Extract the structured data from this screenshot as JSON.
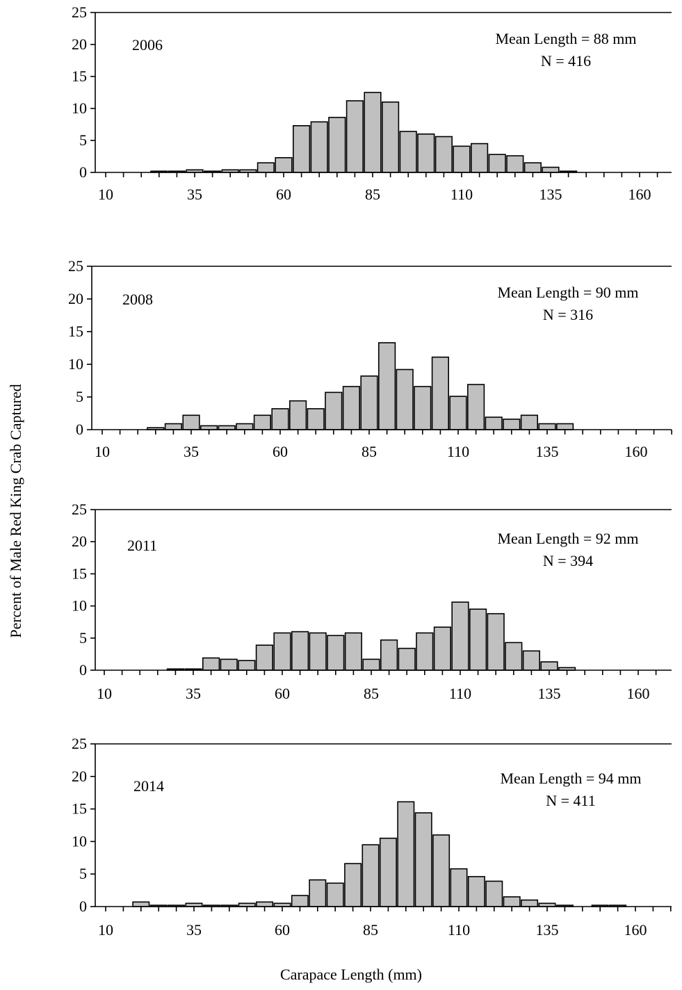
{
  "figure": {
    "ylabel": "Percent of Male Red King Crab Captured",
    "xlabel": "Carapace Length (mm)"
  },
  "colors": {
    "bar_fill": "#c0c0c0",
    "bar_stroke": "#000000",
    "axis": "#000000"
  },
  "chart_data": [
    {
      "type": "bar",
      "year_label": "2006",
      "mean_text": "Mean Length = 88 mm",
      "n_text": "N = 416",
      "ylim": [
        0,
        25
      ],
      "yticks": [
        0,
        5,
        10,
        15,
        20,
        25
      ],
      "xticks": [
        10,
        35,
        60,
        85,
        110,
        135,
        160
      ],
      "x": [
        25,
        30,
        35,
        40,
        45,
        50,
        55,
        60,
        65,
        70,
        75,
        80,
        85,
        90,
        95,
        100,
        105,
        110,
        115,
        120,
        125,
        130,
        135,
        140
      ],
      "values": [
        0.2,
        0.2,
        0.4,
        0.2,
        0.4,
        0.4,
        1.5,
        2.3,
        7.3,
        7.9,
        8.6,
        11.2,
        12.5,
        11.0,
        6.4,
        6.0,
        5.6,
        4.1,
        4.5,
        2.8,
        2.6,
        1.5,
        0.8,
        0.2
      ]
    },
    {
      "type": "bar",
      "year_label": "2008",
      "mean_text": "Mean Length = 90 mm",
      "n_text": "N = 316",
      "ylim": [
        0,
        25
      ],
      "yticks": [
        0,
        5,
        10,
        15,
        20,
        25
      ],
      "xticks": [
        10,
        35,
        60,
        85,
        110,
        135,
        160
      ],
      "x": [
        25,
        30,
        35,
        40,
        45,
        50,
        55,
        60,
        65,
        70,
        75,
        80,
        85,
        90,
        95,
        100,
        105,
        110,
        115,
        120,
        125,
        130,
        135,
        140
      ],
      "values": [
        0.3,
        0.9,
        2.2,
        0.6,
        0.6,
        0.9,
        2.2,
        3.2,
        4.4,
        3.2,
        5.7,
        6.6,
        8.2,
        13.3,
        9.2,
        6.6,
        11.1,
        5.1,
        6.9,
        1.9,
        1.6,
        2.2,
        0.9,
        0.9
      ]
    },
    {
      "type": "bar",
      "year_label": "2011",
      "mean_text": "Mean Length = 92 mm",
      "n_text": "N = 394",
      "ylim": [
        0,
        25
      ],
      "yticks": [
        0,
        5,
        10,
        15,
        20,
        25
      ],
      "xticks": [
        10,
        35,
        60,
        85,
        110,
        135,
        160
      ],
      "x": [
        30,
        35,
        40,
        45,
        50,
        55,
        60,
        65,
        70,
        75,
        80,
        85,
        90,
        95,
        100,
        105,
        110,
        115,
        120,
        125,
        130,
        135,
        140
      ],
      "values": [
        0.2,
        0.2,
        1.9,
        1.7,
        1.5,
        3.9,
        5.8,
        6.0,
        5.8,
        5.4,
        5.8,
        1.7,
        4.7,
        3.4,
        5.8,
        6.7,
        10.6,
        9.5,
        8.8,
        4.3,
        3.0,
        1.3,
        0.4
      ]
    },
    {
      "type": "bar",
      "year_label": "2014",
      "mean_text": "Mean Length = 94 mm",
      "n_text": "N = 411",
      "ylim": [
        0,
        25
      ],
      "yticks": [
        0,
        5,
        10,
        15,
        20,
        25
      ],
      "xticks": [
        10,
        35,
        60,
        85,
        110,
        135,
        160
      ],
      "x": [
        20,
        25,
        30,
        35,
        40,
        45,
        50,
        55,
        60,
        65,
        70,
        75,
        80,
        85,
        90,
        95,
        100,
        105,
        110,
        115,
        120,
        125,
        130,
        135,
        140,
        150,
        155
      ],
      "values": [
        0.7,
        0.2,
        0.2,
        0.5,
        0.2,
        0.2,
        0.5,
        0.7,
        0.5,
        1.7,
        4.1,
        3.6,
        6.6,
        9.5,
        10.5,
        16.1,
        14.4,
        11.0,
        5.8,
        4.6,
        3.9,
        1.5,
        1.0,
        0.5,
        0.2,
        0.2,
        0.2
      ]
    }
  ]
}
